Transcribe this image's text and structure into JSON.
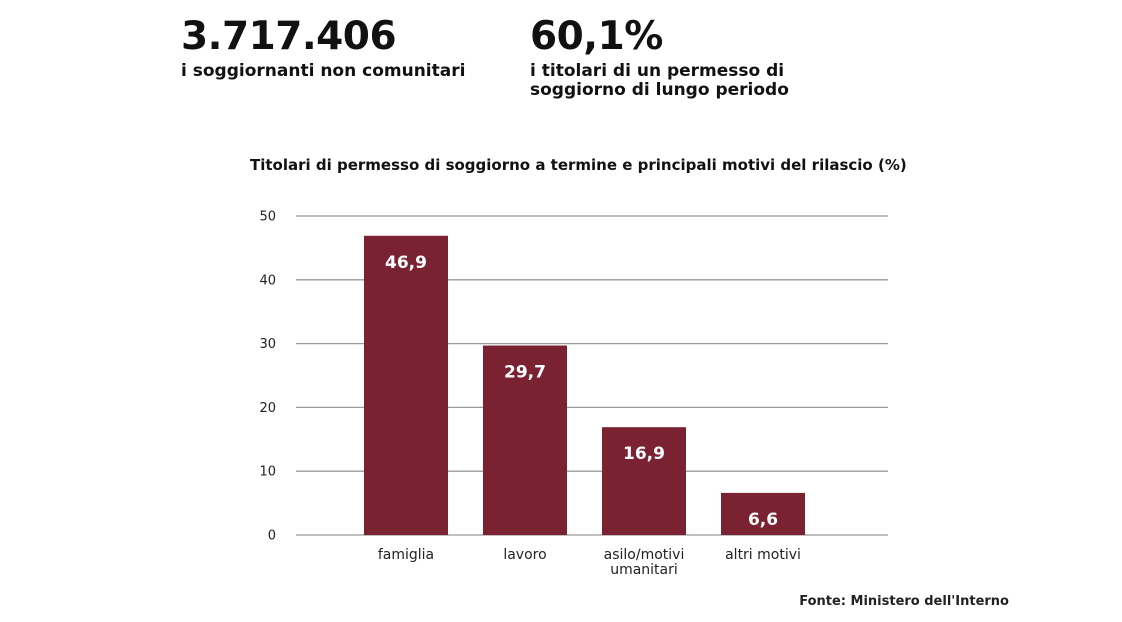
{
  "kpis": [
    {
      "value": "3.717.406",
      "label_lines": [
        "i soggiornanti non comunitari"
      ]
    },
    {
      "value": "60,1%",
      "label_lines": [
        "i titolari di un permesso di",
        "soggiorno di lungo periodo"
      ]
    }
  ],
  "source": "Fonte: Ministero dell'Interno",
  "chart_data": {
    "type": "bar",
    "title": "Titolari di permesso di soggiorno a termine e principali motivi del rilascio (%)",
    "categories": [
      [
        "famiglia"
      ],
      [
        "lavoro"
      ],
      [
        "asilo/motivi",
        "umanitari"
      ],
      [
        "altri motivi"
      ]
    ],
    "values": [
      46.9,
      29.7,
      16.9,
      6.6
    ],
    "value_labels": [
      "46,9",
      "29,7",
      "16,9",
      "6,6"
    ],
    "ylim": [
      0,
      50
    ],
    "yticks": [
      0,
      10,
      20,
      30,
      40,
      50
    ],
    "grid": true,
    "bar_color": "#7b2232",
    "grid_color": "#9a9a9a"
  }
}
